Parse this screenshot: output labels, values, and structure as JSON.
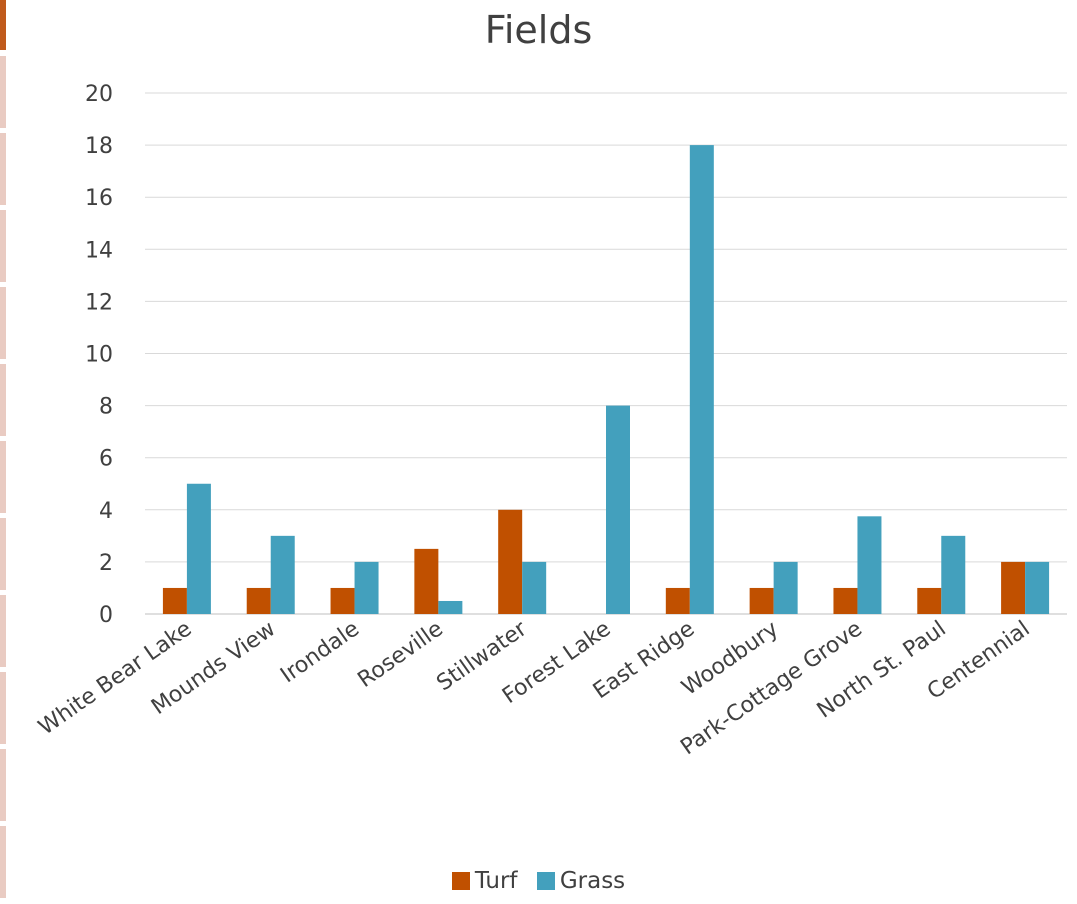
{
  "chart_data": {
    "type": "bar",
    "title": "Fields",
    "xlabel": "",
    "ylabel": "",
    "categories": [
      "White Bear Lake",
      "Mounds View",
      "Irondale",
      "Roseville",
      "Stillwater",
      "Forest Lake",
      "East Ridge",
      "Woodbury",
      "Park-Cottage Grove",
      "North St. Paul",
      "Centennial"
    ],
    "series": [
      {
        "name": "Turf",
        "color": "#c05000",
        "values": [
          1,
          1,
          1,
          2.5,
          4,
          0,
          1,
          1,
          1,
          1,
          2
        ]
      },
      {
        "name": "Grass",
        "color": "#43a0bd",
        "values": [
          5,
          3,
          2,
          0.5,
          2,
          8,
          18,
          2,
          3.75,
          3,
          2
        ]
      }
    ],
    "ylim": [
      0,
      20
    ],
    "yticks": [
      0,
      2,
      4,
      6,
      8,
      10,
      12,
      14,
      16,
      18,
      20
    ],
    "grid": true,
    "legend_position": "bottom"
  }
}
